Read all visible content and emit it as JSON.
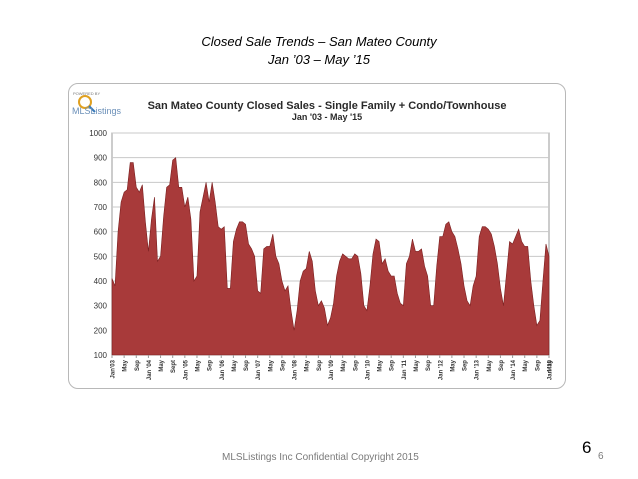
{
  "slide": {
    "title": "Closed Sale Trends – San Mateo County",
    "subtitle": "Jan ’03 – May ’15",
    "footer": "MLSListings Inc Confidential Copyright 2015",
    "page_number": "6",
    "page_number_small": "6"
  },
  "logo": {
    "small_text": "POWERED BY",
    "name": "MLSListings"
  },
  "colors": {
    "area_fill": "#a83a3a",
    "area_stroke": "#7a1f1f",
    "grid": "#c8c8c8",
    "plot_bg": "#ffffff"
  },
  "chart_data": {
    "type": "area",
    "title": "San Mateo County Closed Sales - Single Family + Condo/Townhouse",
    "subtitle": "Jan '03 - May '15",
    "xlabel": "",
    "ylabel": "",
    "ylim": [
      100,
      1000
    ],
    "yticks": [
      100,
      200,
      300,
      400,
      500,
      600,
      700,
      800,
      900,
      1000
    ],
    "grid": true,
    "x_tick_labels": [
      "Jan'03",
      "May",
      "Sep",
      "Jan '04",
      "May",
      "Sept",
      "Jan '05",
      "May",
      "Sep",
      "Jan '06",
      "May",
      "Sep",
      "Jan '07",
      "May",
      "Sep",
      "Jan '08",
      "May",
      "Sep",
      "Jan '09",
      "May",
      "Sep",
      "Jan '10",
      "May",
      "Sep",
      "Jan '11",
      "May",
      "Sep",
      "Jan '12",
      "May",
      "Sep",
      "Jan '13",
      "May",
      "Sep",
      "Jan '14",
      "May",
      "Sep",
      "Jan '15",
      "May"
    ],
    "series": [
      {
        "values": [
          410,
          380,
          600,
          720,
          760,
          770,
          880,
          880,
          780,
          760,
          790,
          640,
          520,
          650,
          740,
          480,
          500,
          660,
          780,
          790,
          890,
          900,
          780,
          780,
          700,
          740,
          650,
          400,
          420,
          680,
          740,
          800,
          720,
          800,
          720,
          620,
          610,
          620,
          370,
          370,
          560,
          610,
          640,
          640,
          630,
          550,
          530,
          500,
          360,
          350,
          530,
          540,
          540,
          590,
          500,
          470,
          400,
          360,
          380,
          280,
          200,
          280,
          400,
          440,
          450,
          520,
          480,
          360,
          300,
          320,
          290,
          220,
          250,
          310,
          420,
          480,
          510,
          500,
          490,
          490,
          510,
          500,
          430,
          300,
          280,
          380,
          510,
          570,
          560,
          470,
          490,
          440,
          420,
          420,
          350,
          310,
          300,
          470,
          500,
          570,
          520,
          520,
          530,
          460,
          420,
          300,
          300,
          460,
          580,
          580,
          630,
          640,
          600,
          580,
          530,
          470,
          380,
          320,
          300,
          380,
          420,
          580,
          620,
          620,
          610,
          590,
          540,
          470,
          370,
          300,
          430,
          560,
          550,
          580,
          610,
          560,
          540,
          540,
          400,
          300,
          220,
          240,
          400,
          550,
          500
        ]
      }
    ]
  }
}
